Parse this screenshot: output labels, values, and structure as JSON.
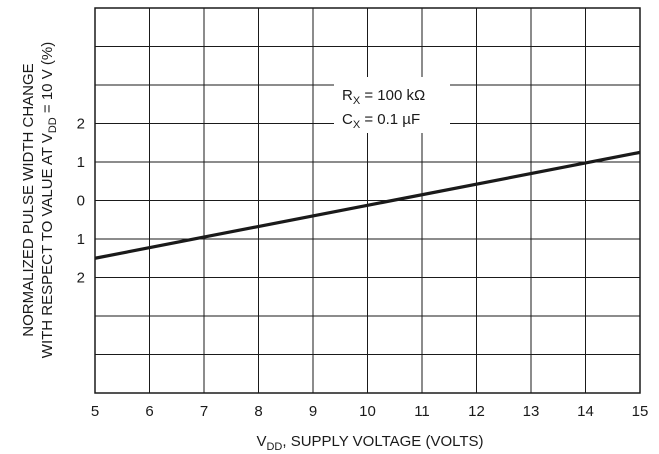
{
  "chart_data": {
    "type": "line",
    "title": "",
    "xlabel": {
      "main": "V",
      "sub": "DD",
      "rest": ", SUPPLY VOLTAGE (VOLTS)"
    },
    "ylabel": {
      "line1": "NORMALIZED PULSE WIDTH CHANGE",
      "line2_main": "WITH RESPECT TO VALUE AT V",
      "line2_sub": "DD",
      "line2_rest": " = 10 V (%)"
    },
    "xlim": [
      5,
      15
    ],
    "ylim": [
      -5,
      5
    ],
    "x_ticks": [
      5,
      6,
      7,
      8,
      9,
      10,
      11,
      12,
      13,
      14,
      15
    ],
    "y_ticks": [
      {
        "value": 2,
        "label": "2"
      },
      {
        "value": 1,
        "label": "1"
      },
      {
        "value": 0,
        "label": "0"
      },
      {
        "value": -1,
        "label": "1"
      },
      {
        "value": -2,
        "label": "2"
      }
    ],
    "grid": true,
    "annotation": {
      "rx_main": "R",
      "rx_sub": "X",
      "rx_rest": " = 100 kΩ",
      "cx_main": "C",
      "cx_sub": "X",
      "cx_rest": " = 0.1 µF"
    },
    "series": [
      {
        "x": [
          5,
          15
        ],
        "y": [
          -1.5,
          1.25
        ],
        "color": "#1a1a1a"
      }
    ]
  }
}
